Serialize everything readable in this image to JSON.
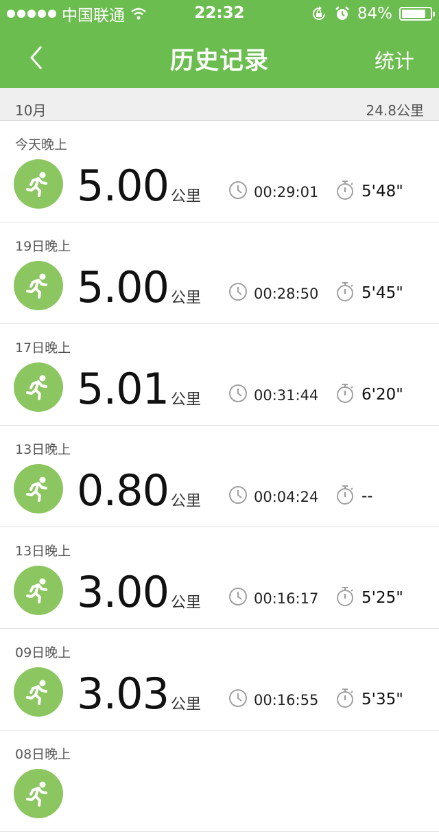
{
  "status": {
    "carrier": "中国联通",
    "time": "22:32",
    "battery": "84%",
    "battery_level": 0.84
  },
  "nav": {
    "title": "历史记录",
    "right_label": "统计"
  },
  "month": {
    "label": "10月",
    "total": "24.8公里"
  },
  "unit": "公里",
  "records": [
    {
      "date": "今天晚上",
      "distance": "5.00",
      "duration": "00:29:01",
      "pace": "5'48\""
    },
    {
      "date": "19日晚上",
      "distance": "5.00",
      "duration": "00:28:50",
      "pace": "5'45\""
    },
    {
      "date": "17日晚上",
      "distance": "5.01",
      "duration": "00:31:44",
      "pace": "6'20\""
    },
    {
      "date": "13日晚上",
      "distance": "0.80",
      "duration": "00:04:24",
      "pace": "--"
    },
    {
      "date": "13日晚上",
      "distance": "3.00",
      "duration": "00:16:17",
      "pace": "5'25\""
    },
    {
      "date": "09日晚上",
      "distance": "3.03",
      "duration": "00:16:55",
      "pace": "5'35\""
    },
    {
      "date": "08日晚上",
      "distance": "",
      "duration": "",
      "pace": ""
    }
  ],
  "colors": {
    "header": "#6cbd4f",
    "icon": "#8cc660"
  }
}
